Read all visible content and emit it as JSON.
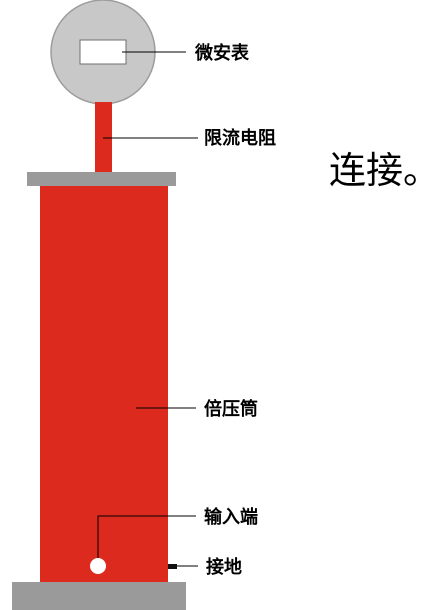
{
  "labels": {
    "microammeter": "微安表",
    "limiting_resistor": "限流电阻",
    "multiplier_tube": "倍压筒",
    "input_terminal": "输入端",
    "ground": "接地"
  },
  "side_text": "连接。",
  "colors": {
    "body_red": "#dc2a1e",
    "plate_gray": "#9a9a9a",
    "meter_gray": "#c8c8c8",
    "meter_outline": "#9c9c9c",
    "leader_line": "#000000",
    "terminal_white": "#ffffff"
  }
}
